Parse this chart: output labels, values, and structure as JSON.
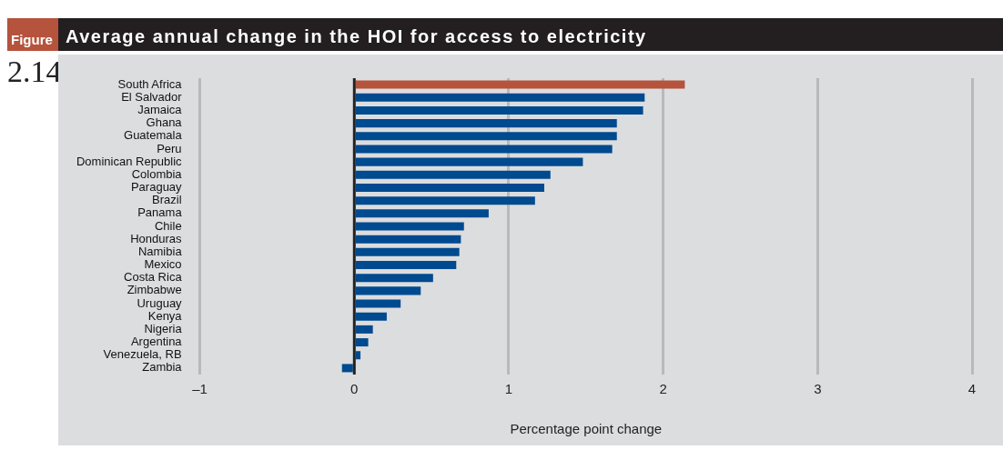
{
  "chart_data": {
    "type": "bar",
    "orientation": "horizontal",
    "title": "Average annual change in the HOI for access to electricity",
    "xlabel": "Percentage point change",
    "annotations": [
      "Figure",
      "2.14"
    ],
    "categories": [
      "South Africa",
      "El Salvador",
      "Jamaica",
      "Ghana",
      "Guatemala",
      "Peru",
      "Dominican Republic",
      "Colombia",
      "Paraguay",
      "Brazil",
      "Panama",
      "Chile",
      "Honduras",
      "Namibia",
      "Mexico",
      "Costa Rica",
      "Zimbabwe",
      "Uruguay",
      "Kenya",
      "Nigeria",
      "Argentina",
      "Venezuela, RB",
      "Zambia"
    ],
    "values": [
      2.14,
      1.88,
      1.87,
      1.7,
      1.7,
      1.67,
      1.48,
      1.27,
      1.23,
      1.17,
      0.87,
      0.71,
      0.69,
      0.68,
      0.66,
      0.51,
      0.43,
      0.3,
      0.21,
      0.12,
      0.09,
      0.04,
      -0.08
    ],
    "colors": [
      "#b5533c",
      "#004a8f",
      "#004a8f",
      "#004a8f",
      "#004a8f",
      "#004a8f",
      "#004a8f",
      "#004a8f",
      "#004a8f",
      "#004a8f",
      "#004a8f",
      "#004a8f",
      "#004a8f",
      "#004a8f",
      "#004a8f",
      "#004a8f",
      "#004a8f",
      "#004a8f",
      "#004a8f",
      "#004a8f",
      "#004a8f",
      "#004a8f",
      "#004a8f"
    ],
    "xlim": [
      -1,
      4
    ],
    "xticks": [
      {
        "value": -1,
        "label": "–1"
      },
      0,
      1,
      2,
      3,
      4
    ],
    "ref_lines": [
      {
        "axis": "x",
        "value": 0,
        "color": "#222222"
      }
    ],
    "grid": "x",
    "legend": false
  }
}
